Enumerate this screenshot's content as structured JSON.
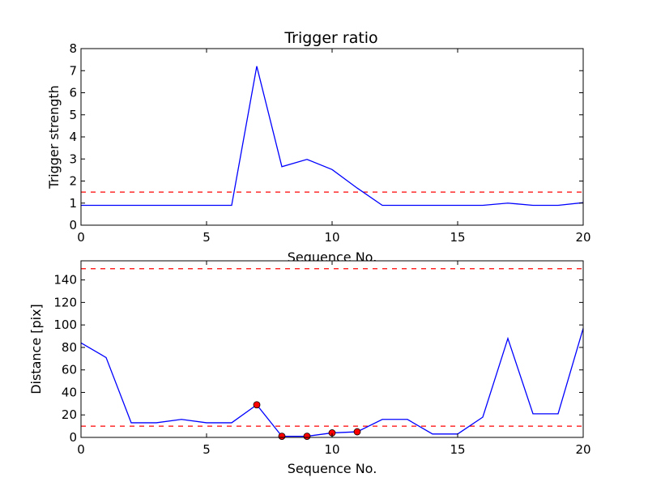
{
  "chart_data": [
    {
      "type": "line",
      "title": "Trigger ratio",
      "xlabel": "Sequence No.",
      "ylabel": "Trigger strength",
      "xlim": [
        0,
        20
      ],
      "ylim": [
        0,
        8
      ],
      "xticks": [
        0,
        5,
        10,
        15,
        20
      ],
      "yticks": [
        0,
        1,
        2,
        3,
        4,
        5,
        6,
        7,
        8
      ],
      "grid": false,
      "series": [
        {
          "style": "solid",
          "color": "#0000ff",
          "x": [
            0,
            1,
            2,
            3,
            4,
            5,
            6,
            7,
            8,
            9,
            10,
            11,
            12,
            13,
            14,
            15,
            16,
            17,
            18,
            19,
            20
          ],
          "values": [
            0.9,
            0.9,
            0.9,
            0.9,
            0.9,
            0.9,
            0.9,
            7.2,
            2.65,
            2.98,
            2.52,
            1.68,
            0.9,
            0.9,
            0.9,
            0.9,
            0.9,
            1.0,
            0.9,
            0.9,
            1.02
          ]
        }
      ],
      "reference_lines": [
        {
          "y": 1.5,
          "color": "#ff0000",
          "style": "dashed"
        }
      ]
    },
    {
      "type": "line",
      "title": "",
      "xlabel": "Sequence No.",
      "ylabel": "Distance [pix]",
      "xlim": [
        0,
        20
      ],
      "ylim": [
        0,
        157
      ],
      "xticks": [
        0,
        5,
        10,
        15,
        20
      ],
      "yticks": [
        0,
        20,
        40,
        60,
        80,
        100,
        120,
        140
      ],
      "grid": false,
      "series": [
        {
          "style": "solid",
          "color": "#0000ff",
          "x": [
            0,
            1,
            2,
            3,
            4,
            5,
            6,
            7,
            8,
            9,
            10,
            11,
            12,
            13,
            14,
            15,
            16,
            17,
            18,
            19,
            20
          ],
          "values": [
            84,
            71,
            13,
            13,
            16,
            13,
            13,
            29,
            1,
            1,
            4,
            5,
            16,
            16,
            3,
            3,
            18,
            88,
            21,
            21,
            97
          ]
        },
        {
          "style": "markers",
          "color": "#ff0000",
          "x": [
            7,
            8,
            9,
            10,
            11
          ],
          "values": [
            29,
            1,
            1,
            4,
            5
          ]
        }
      ],
      "reference_lines": [
        {
          "y": 10,
          "color": "#ff0000",
          "style": "dashed"
        },
        {
          "y": 150,
          "color": "#ff0000",
          "style": "dashed"
        }
      ]
    }
  ]
}
